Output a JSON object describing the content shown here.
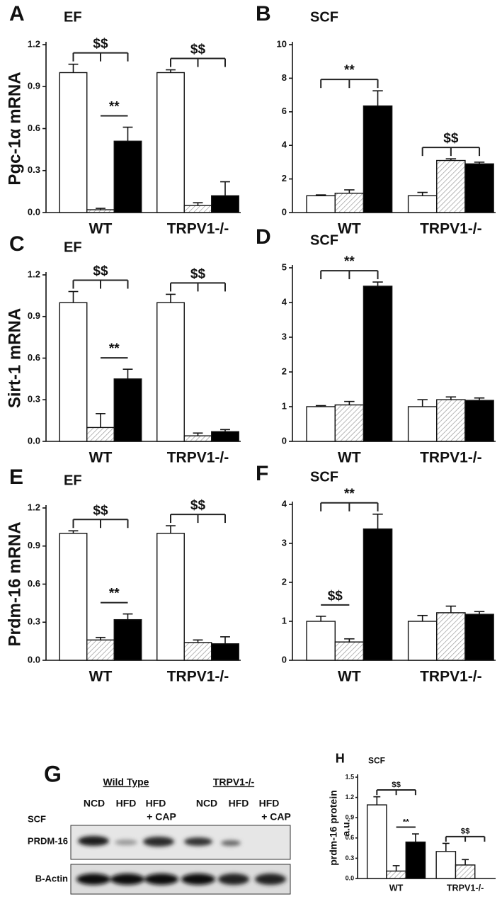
{
  "chart_data": [
    {
      "type": "bar",
      "label": "A",
      "title": "EF",
      "ylabel": "Pgc-1α mRNA",
      "categories": [
        "WT",
        "TRPV1-/-"
      ],
      "series": [
        {
          "color": "#ffffff",
          "values": [
            1.0,
            1.0
          ],
          "errors": [
            0.06,
            0.02
          ]
        },
        {
          "color": "#ffffff",
          "hatch": true,
          "values": [
            0.02,
            0.05
          ],
          "errors": [
            0.01,
            0.02
          ]
        },
        {
          "color": "#000000",
          "values": [
            0.51,
            0.12
          ],
          "errors": [
            0.1,
            0.1
          ]
        }
      ],
      "ylim": [
        0,
        1.2
      ],
      "yticks": [
        {
          "value": 0,
          "label": "0.0"
        },
        0.3,
        0.6,
        0.9,
        1.2
      ],
      "annotations": [
        {
          "text": "$$",
          "category": 0,
          "bars": [
            0,
            2
          ]
        },
        {
          "text": "**",
          "category": 0,
          "bars": [
            1,
            2
          ]
        },
        {
          "text": "$$",
          "category": 1,
          "bars": [
            0,
            2
          ]
        }
      ]
    },
    {
      "type": "bar",
      "label": "B",
      "title": "SCF",
      "categories": [
        "WT",
        "TRPV1-/-"
      ],
      "series": [
        {
          "color": "#ffffff",
          "values": [
            1.0,
            1.0
          ],
          "errors": [
            0.05,
            0.2
          ]
        },
        {
          "color": "#ffffff",
          "hatch": true,
          "values": [
            1.15,
            3.1
          ],
          "errors": [
            0.2,
            0.1
          ]
        },
        {
          "color": "#000000",
          "values": [
            6.35,
            2.9
          ],
          "errors": [
            0.9,
            0.1
          ]
        }
      ],
      "ylim": [
        0,
        10
      ],
      "yticks": [
        0,
        2,
        4,
        6,
        8,
        10
      ],
      "annotations": [
        {
          "text": "**",
          "category": 0,
          "bars": [
            0,
            2
          ]
        },
        {
          "text": "$$",
          "category": 1,
          "bars": [
            0,
            2
          ]
        }
      ]
    },
    {
      "type": "bar",
      "label": "C",
      "title": "EF",
      "ylabel": "Sirt-1 mRNA",
      "categories": [
        "WT",
        "TRPV1-/-"
      ],
      "series": [
        {
          "color": "#ffffff",
          "values": [
            1.0,
            1.0
          ],
          "errors": [
            0.08,
            0.06
          ]
        },
        {
          "color": "#ffffff",
          "hatch": true,
          "values": [
            0.1,
            0.04
          ],
          "errors": [
            0.1,
            0.02
          ]
        },
        {
          "color": "#000000",
          "values": [
            0.45,
            0.07
          ],
          "errors": [
            0.07,
            0.015
          ]
        }
      ],
      "ylim": [
        0,
        1.2
      ],
      "yticks": [
        {
          "value": 0,
          "label": "0.0"
        },
        0.3,
        0.6,
        0.9,
        1.2
      ],
      "annotations": [
        {
          "text": "$$",
          "category": 0,
          "bars": [
            0,
            2
          ]
        },
        {
          "text": "**",
          "category": 0,
          "bars": [
            1,
            2
          ]
        },
        {
          "text": "$$",
          "category": 1,
          "bars": [
            0,
            2
          ]
        }
      ]
    },
    {
      "type": "bar",
      "label": "D",
      "title": "SCF",
      "categories": [
        "WT",
        "TRPV1-/-"
      ],
      "series": [
        {
          "color": "#ffffff",
          "values": [
            1.0,
            1.0
          ],
          "errors": [
            0.03,
            0.2
          ]
        },
        {
          "color": "#ffffff",
          "hatch": true,
          "values": [
            1.05,
            1.2
          ],
          "errors": [
            0.1,
            0.08
          ]
        },
        {
          "color": "#000000",
          "values": [
            4.47,
            1.18
          ],
          "errors": [
            0.12,
            0.07
          ]
        }
      ],
      "ylim": [
        0,
        5
      ],
      "yticks": [
        0,
        1,
        2,
        3,
        4,
        5
      ],
      "annotations": [
        {
          "text": "**",
          "category": 0,
          "bars": [
            0,
            2
          ]
        }
      ]
    },
    {
      "type": "bar",
      "label": "E",
      "title": "EF",
      "ylabel": "Prdm-16 mRNA",
      "categories": [
        "WT",
        "TRPV1-/-"
      ],
      "series": [
        {
          "color": "#ffffff",
          "values": [
            1.0,
            1.0
          ],
          "errors": [
            0.02,
            0.06
          ]
        },
        {
          "color": "#ffffff",
          "hatch": true,
          "values": [
            0.16,
            0.14
          ],
          "errors": [
            0.02,
            0.02
          ]
        },
        {
          "color": "#000000",
          "values": [
            0.32,
            0.13
          ],
          "errors": [
            0.045,
            0.055
          ]
        }
      ],
      "ylim": [
        0,
        1.2
      ],
      "yticks": [
        {
          "value": 0,
          "label": "0.0"
        },
        0.3,
        0.6,
        0.9,
        1.2
      ],
      "annotations": [
        {
          "text": "$$",
          "category": 0,
          "bars": [
            0,
            2
          ]
        },
        {
          "text": "**",
          "category": 0,
          "bars": [
            1,
            2
          ]
        },
        {
          "text": "$$",
          "category": 1,
          "bars": [
            0,
            2
          ]
        }
      ]
    },
    {
      "type": "bar",
      "label": "F",
      "title": "SCF",
      "categories": [
        "WT",
        "TRPV1-/-"
      ],
      "series": [
        {
          "color": "#ffffff",
          "values": [
            1.0,
            1.0
          ],
          "errors": [
            0.13,
            0.15
          ]
        },
        {
          "color": "#ffffff",
          "hatch": true,
          "values": [
            0.47,
            1.22
          ],
          "errors": [
            0.08,
            0.17
          ]
        },
        {
          "color": "#000000",
          "values": [
            3.37,
            1.18
          ],
          "errors": [
            0.38,
            0.07
          ]
        }
      ],
      "ylim": [
        0,
        4
      ],
      "yticks": [
        0,
        1,
        2,
        3,
        4
      ],
      "annotations": [
        {
          "text": "**",
          "category": 0,
          "bars": [
            0,
            2
          ]
        },
        {
          "text": "$$",
          "category": 0,
          "bars": [
            0,
            1
          ]
        }
      ]
    },
    {
      "type": "bar",
      "label": "H",
      "title": "SCF",
      "ylabel": [
        "prdm-16 protein",
        "a.u."
      ],
      "categories": [
        "WT",
        "TRPV1-/-"
      ],
      "series": [
        {
          "color": "#ffffff",
          "values": [
            1.09,
            0.4
          ],
          "errors": [
            0.12,
            0.12
          ]
        },
        {
          "color": "#ffffff",
          "hatch": true,
          "values": [
            0.11,
            0.2
          ],
          "errors": [
            0.08,
            0.08
          ]
        },
        {
          "color": "#000000",
          "values": [
            0.54,
            null
          ],
          "errors": [
            0.12,
            null
          ]
        }
      ],
      "ylim": [
        0,
        1.5
      ],
      "yticks": [
        {
          "value": 0,
          "label": "0.0"
        },
        0.3,
        0.6,
        0.9,
        1.2,
        1.5
      ],
      "annotations": [
        {
          "text": "$$",
          "category": 0,
          "bars": [
            0,
            2
          ]
        },
        {
          "text": "**",
          "category": 0,
          "bars": [
            1,
            2
          ]
        },
        {
          "text": "$$",
          "category": 1,
          "bars": [
            0,
            2
          ]
        }
      ]
    }
  ],
  "blot": {
    "label": "G",
    "groups": [
      "Wild Type",
      "TRPV1-/-"
    ],
    "lanes": [
      "NCD",
      "HFD",
      "HFD",
      "NCD",
      "HFD",
      "HFD"
    ],
    "lane_notes": [
      "+ CAP",
      "+ CAP"
    ],
    "tissue": "SCF",
    "rows": [
      "PRDM-16",
      "B-Actin"
    ]
  }
}
